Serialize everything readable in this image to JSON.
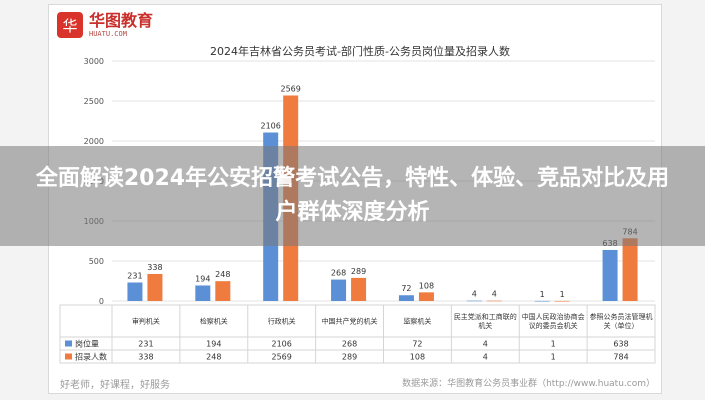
{
  "logo": {
    "mark": "华",
    "name": "华图教育",
    "site": "HUATU.COM"
  },
  "chart_data": {
    "type": "bar",
    "title": "2024年吉林省公务员考试-部门性质-公务员岗位量及招录人数",
    "categories": [
      "审判机关",
      "检察机关",
      "行政机关",
      "中国共产党的机关",
      "监察机关",
      "民主党派和工商联的机关",
      "中国人民政治协商会议的委员会机关",
      "参照公务员法管理机关（单位）"
    ],
    "series": [
      {
        "name": "岗位量",
        "color": "#5b8fd6",
        "values": [
          231,
          194,
          2106,
          268,
          72,
          4,
          1,
          638
        ]
      },
      {
        "name": "招录人数",
        "color": "#f07b3f",
        "values": [
          338,
          248,
          2569,
          289,
          108,
          4,
          1,
          784
        ]
      }
    ],
    "ylim": [
      0,
      3000
    ],
    "yticks": [
      "0",
      "500",
      "1000",
      "1500",
      "2000",
      "2500",
      "3000"
    ],
    "grid": true,
    "legend": "bottom table"
  },
  "overlay": {
    "headline": "全面解读2024年公安招警考试公告，特性、体验、竞品对比及用户群体深度分析"
  },
  "footer": {
    "left": "好老师，好课程，好服务",
    "right": "数据来源：华图教育公务员事业群（http://www.huatu.com）"
  }
}
